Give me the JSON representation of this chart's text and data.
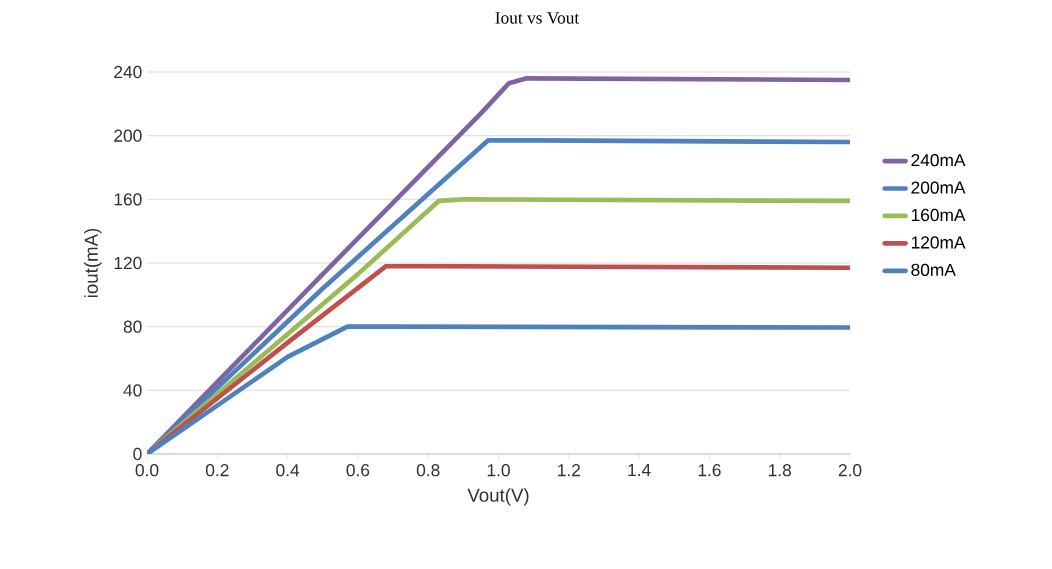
{
  "chart_data": {
    "type": "line",
    "title": "Iout vs Vout",
    "xlabel": "Vout(V)",
    "ylabel": "iout(mA)",
    "xlim": [
      0,
      2
    ],
    "ylim": [
      0,
      240
    ],
    "xticks": [
      {
        "value": 0,
        "label": "0.0"
      },
      {
        "value": 0.2,
        "label": "0.2"
      },
      {
        "value": 0.4,
        "label": "0.4"
      },
      {
        "value": 0.6,
        "label": "0.6"
      },
      {
        "value": 0.8,
        "label": "0.8"
      },
      {
        "value": 1.0,
        "label": "1.0"
      },
      {
        "value": 1.2,
        "label": "1.2"
      },
      {
        "value": 1.4,
        "label": "1.4"
      },
      {
        "value": 1.6,
        "label": "1.6"
      },
      {
        "value": 1.8,
        "label": "1.8"
      },
      {
        "value": 2.0,
        "label": "2.0"
      }
    ],
    "yticks": [
      0,
      40,
      80,
      120,
      160,
      200,
      240
    ],
    "grid": "y",
    "legend": "right",
    "marker": "none",
    "line_style": "solid",
    "series": [
      {
        "name": "240mA",
        "color": "#8064a2",
        "x": [
          0,
          0.5,
          0.95,
          1.03,
          1.08,
          2.0
        ],
        "values": [
          0,
          113,
          214,
          233,
          236,
          235
        ]
      },
      {
        "name": "200mA",
        "color": "#4f81bd",
        "x": [
          0,
          0.5,
          0.97,
          1.1,
          2.0
        ],
        "values": [
          0,
          104,
          197,
          197,
          196
        ]
      },
      {
        "name": "160mA",
        "color": "#9bbb59",
        "x": [
          0,
          0.6,
          0.83,
          0.9,
          2.0
        ],
        "values": [
          0,
          113,
          159,
          160,
          159
        ]
      },
      {
        "name": "120mA",
        "color": "#c0504d",
        "x": [
          0,
          0.4,
          0.68,
          0.8,
          2.0
        ],
        "values": [
          0,
          70,
          118,
          118,
          117
        ]
      },
      {
        "name": "80mA",
        "color": "#4f81bd",
        "x": [
          0,
          0.4,
          0.57,
          0.7,
          2.0
        ],
        "values": [
          0,
          61,
          80,
          80,
          79.5
        ]
      }
    ]
  }
}
